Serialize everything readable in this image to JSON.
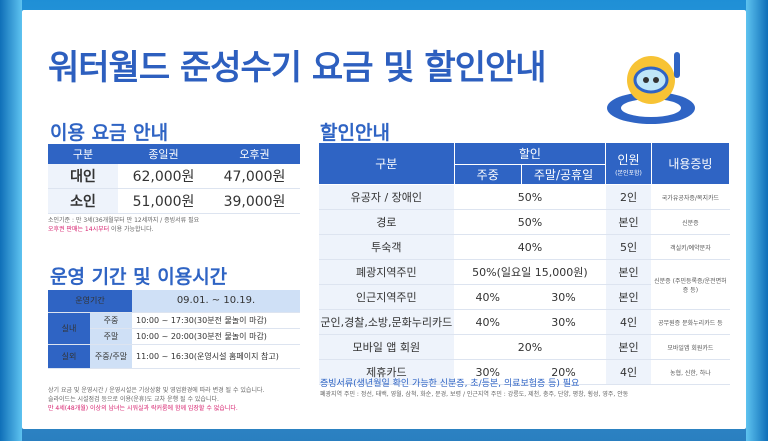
{
  "title": "워터월드 준성수기 요금 및 할인안내",
  "fee": {
    "heading": "이용 요금 안내",
    "headers": [
      "구분",
      "종일권",
      "오후권"
    ],
    "rows": [
      {
        "label": "대인",
        "day": "62,000원",
        "pm": "47,000원"
      },
      {
        "label": "소인",
        "day": "51,000원",
        "pm": "39,000원"
      }
    ],
    "note1": "소인기준 : 만 3세(36개월부터 만 12세까지 / 증빙서류 필요",
    "note2_pink": "오후권 판매는 14시부터",
    "note2_rest": " 이용 가능합니다."
  },
  "op": {
    "heading": "운영 기간 및 이용시간",
    "period_label": "운영기간",
    "period_value": "09.01. ~ 10.19.",
    "indoor": "실내",
    "weekday": "주중",
    "weekend": "주말",
    "indoor_weekday": "10:00 ~ 17:30(30분전 물놀이 마감)",
    "indoor_weekend": "10:00 ~ 20:00(30분전 물놀이 마감)",
    "outdoor": "실외",
    "outdoor_days": "주중/주말",
    "outdoor_time": "11:00 ~ 16:30(운영시설 홈페이지 참고)",
    "notes": [
      "상기 요금 및 운영시간 / 운영시설은 기상상황 및 영업환경에 따라 변경 될 수 있습니다.",
      "슬라이드는 시설점검 등으로 이용(운휴)도 교차 운행 될 수 있습니다."
    ],
    "note_pink": "만 4세(48개월) 이상의 남녀는 시워실과 락커룸에 함께 입장할 수 없습니다."
  },
  "dis": {
    "heading": "할인안내",
    "h_kind": "구분",
    "h_discount": "할인",
    "h_weekday": "주중",
    "h_weekend": "주말/공휴일",
    "h_people": "인원",
    "h_people_sub": "(본인포함)",
    "h_proof": "내용증빙",
    "rows": [
      {
        "kind": "유공자 / 장애인",
        "wd": "50%",
        "we": "",
        "merged": true,
        "people": "2인",
        "proof": "국가유공자증/복지카드"
      },
      {
        "kind": "경로",
        "wd": "50%",
        "we": "",
        "merged": true,
        "people": "본인",
        "proof": "신분증"
      },
      {
        "kind": "투숙객",
        "wd": "40%",
        "we": "",
        "merged": true,
        "people": "5인",
        "proof": "객실키/예약문자"
      },
      {
        "kind": "폐광지역주민",
        "wd": "50%(일요일 15,000원)",
        "we": "",
        "merged": true,
        "people": "본인",
        "proof": "신분증 (주민등록증/운전면허증 등)"
      },
      {
        "kind": "인근지역주민",
        "wd": "40%",
        "we": "30%",
        "merged": false,
        "people": "본인",
        "proof": ""
      },
      {
        "kind": "군인,경찰,소방,문화누리카드",
        "wd": "40%",
        "we": "30%",
        "merged": false,
        "people": "4인",
        "proof": "공무원증 문화누리카드 등"
      },
      {
        "kind": "모바일 앱 회원",
        "wd": "20%",
        "we": "",
        "merged": true,
        "people": "본인",
        "proof": "모바일앱 회원카드"
      },
      {
        "kind": "제휴카드",
        "wd": "30%",
        "we": "20%",
        "merged": false,
        "people": "4인",
        "proof": "농협, 신한, 하나"
      }
    ],
    "note1": "증빙서류(생년월일 확인 가능한 신분증, 초/등본, 의료보험증 등) 필요",
    "note2": "폐광지역 주민 : 정선, 태백, 영월, 삼척, 화순, 문경, 보령 / 인근지역 주민 : 강릉도, 제천, 충주, 단양, 평창, 횡성, 영주, 안동"
  }
}
